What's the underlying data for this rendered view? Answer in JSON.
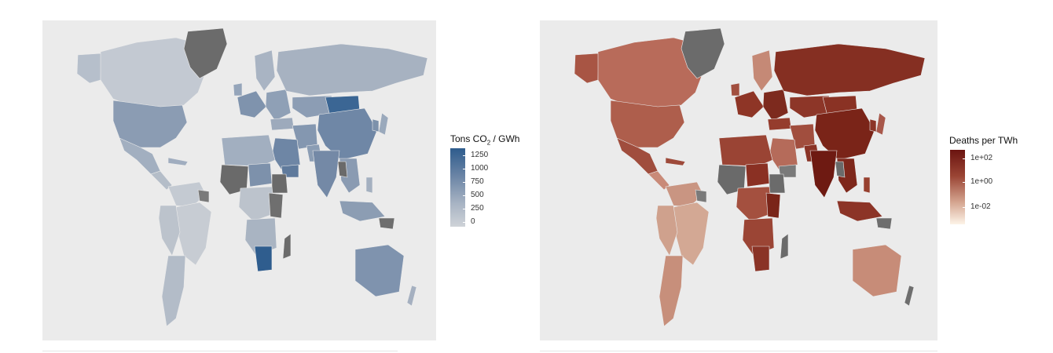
{
  "maps": [
    {
      "legend": {
        "title_prefix": "Tons CO",
        "title_sub": "2",
        "title_suffix": " / GWh",
        "ticks": [
          "1250",
          "1000",
          "750",
          "500",
          "250",
          "0"
        ],
        "low_color": "#cfd3d8",
        "high_color": "#2e5c8d"
      }
    },
    {
      "legend": {
        "title": "Deaths per TWh",
        "ticks": [
          "1e+02",
          "1e+00",
          "1e-02"
        ],
        "low_color": "#fdf4e8",
        "high_color": "#6b1410"
      }
    }
  ],
  "colors": {
    "panel_background": "#ebebeb",
    "no_data": "#7a7a7a"
  }
}
